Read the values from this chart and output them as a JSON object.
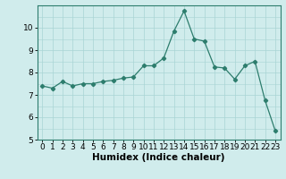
{
  "x": [
    0,
    1,
    2,
    3,
    4,
    5,
    6,
    7,
    8,
    9,
    10,
    11,
    12,
    13,
    14,
    15,
    16,
    17,
    18,
    19,
    20,
    21,
    22,
    23
  ],
  "y": [
    7.4,
    7.3,
    7.6,
    7.4,
    7.5,
    7.5,
    7.6,
    7.65,
    7.75,
    7.8,
    8.3,
    8.3,
    8.65,
    9.85,
    10.75,
    9.5,
    9.4,
    8.25,
    8.2,
    7.7,
    8.3,
    8.5,
    6.75,
    5.4
  ],
  "xlabel": "Humidex (Indice chaleur)",
  "line_color": "#2d7d6d",
  "marker": "D",
  "marker_size": 2.2,
  "bg_color": "#d0ecec",
  "grid_color": "#a8d4d4",
  "ylim": [
    5,
    11
  ],
  "xlim": [
    -0.5,
    23.5
  ],
  "yticks": [
    5,
    6,
    7,
    8,
    9,
    10
  ],
  "xticks": [
    0,
    1,
    2,
    3,
    4,
    5,
    6,
    7,
    8,
    9,
    10,
    11,
    12,
    13,
    14,
    15,
    16,
    17,
    18,
    19,
    20,
    21,
    22,
    23
  ],
  "tick_labelsize": 6.5,
  "xlabel_fontsize": 7.5
}
